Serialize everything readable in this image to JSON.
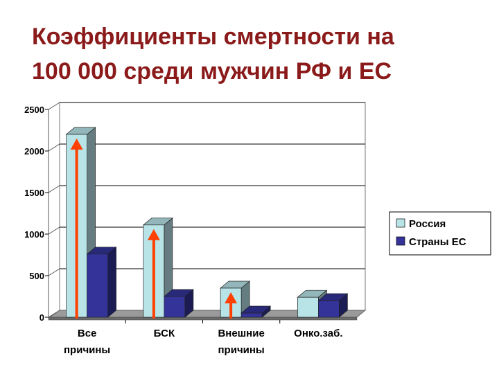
{
  "slide": {
    "title_line1": "Коэффициенты смертности на",
    "title_line2": "100 000 среди мужчин РФ и ЕС"
  },
  "chart_data": {
    "type": "bar",
    "style": "3d-clustered-columns",
    "categories": [
      [
        "Все",
        "причины"
      ],
      [
        "БСК"
      ],
      [
        "Внешние",
        "причины"
      ],
      [
        "Онко.заб."
      ]
    ],
    "series": [
      {
        "name": "Россия",
        "values": [
          2200,
          1110,
          350,
          240
        ],
        "color": "#b8e4e8"
      },
      {
        "name": "Страны ЕС",
        "values": [
          760,
          250,
          50,
          200
        ],
        "color": "#333399"
      }
    ],
    "ylim": [
      0,
      2500
    ],
    "yticks": [
      0,
      500,
      1000,
      1500,
      2000,
      2500
    ],
    "grid": true,
    "legend_position": "right",
    "annotations": {
      "type": "upward-arrows",
      "color": "#ff4000",
      "on_categories": [
        0,
        1,
        2
      ]
    }
  }
}
